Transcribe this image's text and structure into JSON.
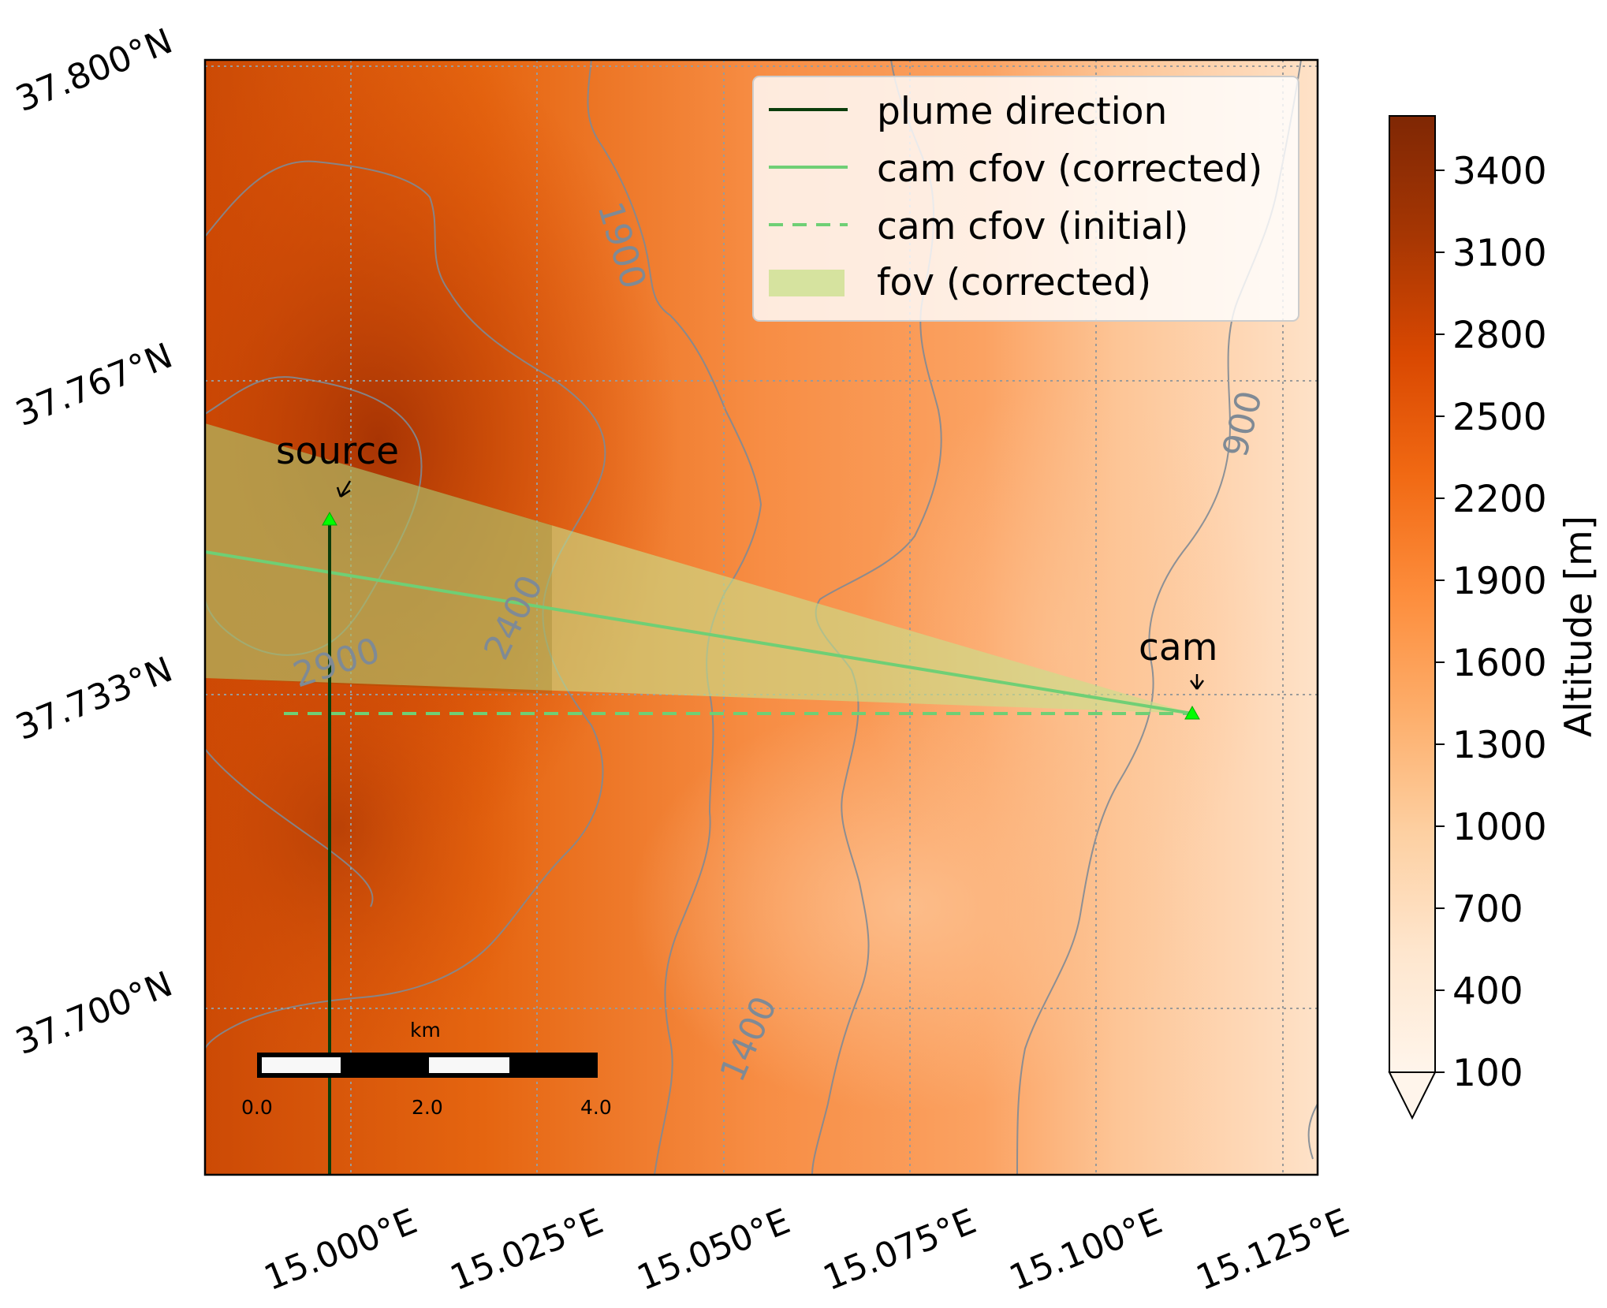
{
  "map": {
    "lon_ticks": [
      "15.000°E",
      "15.025°E",
      "15.050°E",
      "15.075°E",
      "15.100°E",
      "15.125°E"
    ],
    "lat_ticks": [
      "37.700°N",
      "37.733°N",
      "37.767°N",
      "37.800°N"
    ],
    "contour_labels": [
      "2900",
      "2400",
      "1900",
      "1400",
      "900"
    ],
    "annotations": {
      "source": "source",
      "cam": "cam"
    },
    "legend": [
      "plume direction",
      "cam cfov (corrected)",
      "cam cfov (initial)",
      "fov (corrected)"
    ],
    "colorbar": {
      "label": "Altitude [m]",
      "ticks": [
        "100",
        "400",
        "700",
        "1000",
        "1300",
        "1600",
        "1900",
        "2200",
        "2500",
        "2800",
        "3100",
        "3400"
      ],
      "colormap": [
        "#fff5eb",
        "#fee6ce",
        "#fdd0a2",
        "#fdae6b",
        "#fd8d3c",
        "#f16913",
        "#d94801",
        "#a63603",
        "#7f2704"
      ]
    },
    "scalebar": {
      "unit": "km",
      "ticks": [
        "0.0",
        "2.0",
        "4.0"
      ]
    },
    "colors": {
      "plume": "#0b3d0b",
      "cfov": "#6fcf75",
      "fov_fill": "#c8e08a",
      "marker": "#00ff00"
    }
  }
}
